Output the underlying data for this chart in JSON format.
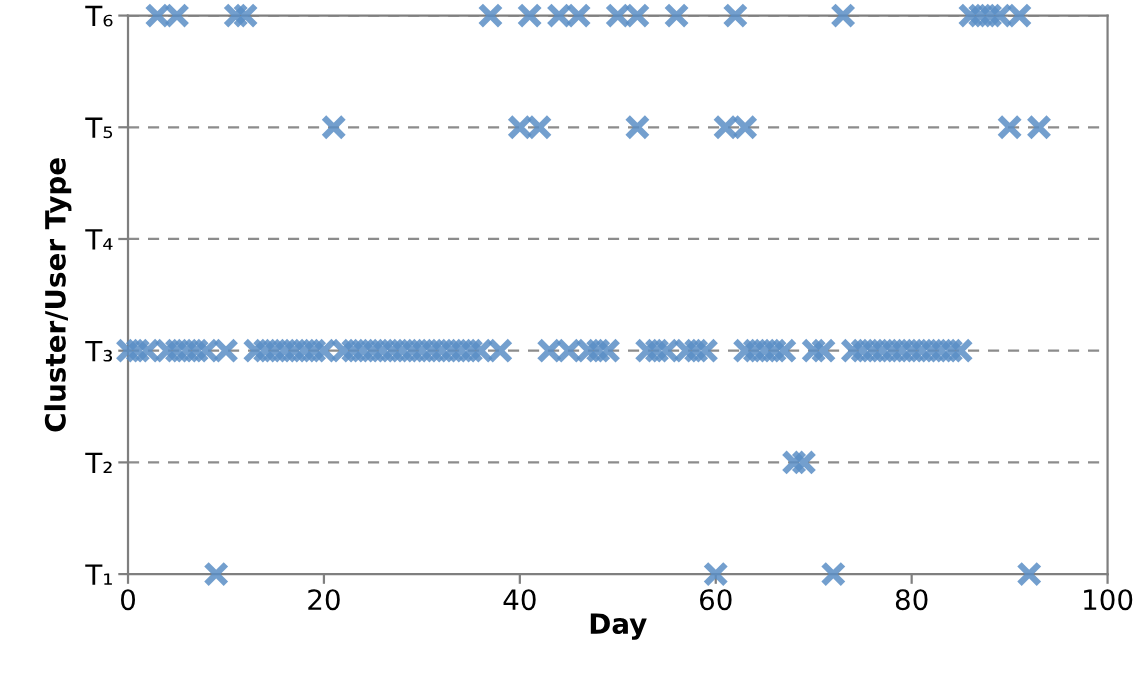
{
  "chart_data": {
    "type": "scatter",
    "orientation": "horizontal",
    "xlabel": "Day",
    "ylabel": "Cluster/User Type",
    "xlim": [
      0,
      100
    ],
    "xticks": [
      0,
      20,
      40,
      60,
      80,
      100
    ],
    "categories": [
      "T₆",
      "T₅",
      "T₄",
      "T₃",
      "T₂",
      "T₁"
    ],
    "grid": "y",
    "marker": "cross",
    "legend": false,
    "series": [
      {
        "color": "#5b8ec6",
        "x": [
          "T₆",
          "T₆",
          "T₆",
          "T₆",
          "T₆",
          "T₆",
          "T₆",
          "T₆",
          "T₆",
          "T₆",
          "T₆",
          "T₆",
          "T₆",
          "T₆",
          "T₆",
          "T₆",
          "T₆",
          "T₆",
          "T₅",
          "T₅",
          "T₅",
          "T₅",
          "T₅",
          "T₅",
          "T₅",
          "T₅",
          "T₃",
          "T₃",
          "T₃",
          "T₃",
          "T₃",
          "T₃",
          "T₃",
          "T₃",
          "T₃",
          "T₃",
          "T₃",
          "T₃",
          "T₃",
          "T₃",
          "T₃",
          "T₃",
          "T₃",
          "T₃",
          "T₃",
          "T₃",
          "T₃",
          "T₃",
          "T₃",
          "T₃",
          "T₃",
          "T₃",
          "T₃",
          "T₃",
          "T₃",
          "T₃",
          "T₃",
          "T₃",
          "T₃",
          "T₃",
          "T₃",
          "T₃",
          "T₃",
          "T₃",
          "T₃",
          "T₃",
          "T₃",
          "T₃",
          "T₃",
          "T₃",
          "T₃",
          "T₃",
          "T₃",
          "T₃",
          "T₃",
          "T₃",
          "T₃",
          "T₃",
          "T₃",
          "T₃",
          "T₃",
          "T₃",
          "T₃",
          "T₃",
          "T₃",
          "T₃",
          "T₃",
          "T₃",
          "T₃",
          "T₂",
          "T₂",
          "T₁",
          "T₁",
          "T₁",
          "T₁"
        ],
        "values": [
          3,
          5,
          11,
          12,
          37,
          41,
          44,
          46,
          50,
          52,
          56,
          62,
          73,
          86,
          87,
          88,
          89,
          91,
          21,
          40,
          42,
          52,
          61,
          63,
          90,
          93,
          0,
          1,
          2,
          4,
          5,
          6,
          7,
          8,
          10,
          13,
          14,
          15,
          16,
          17,
          18,
          19,
          20,
          22,
          23,
          24,
          25,
          26,
          27,
          28,
          29,
          30,
          31,
          32,
          33,
          34,
          35,
          36,
          38,
          43,
          45,
          47,
          48,
          49,
          53,
          54,
          55,
          57,
          58,
          59,
          63,
          64,
          65,
          66,
          67,
          70,
          71,
          74,
          75,
          76,
          77,
          78,
          79,
          80,
          81,
          82,
          83,
          84,
          85,
          68,
          69,
          9,
          60,
          72,
          92
        ]
      }
    ]
  }
}
